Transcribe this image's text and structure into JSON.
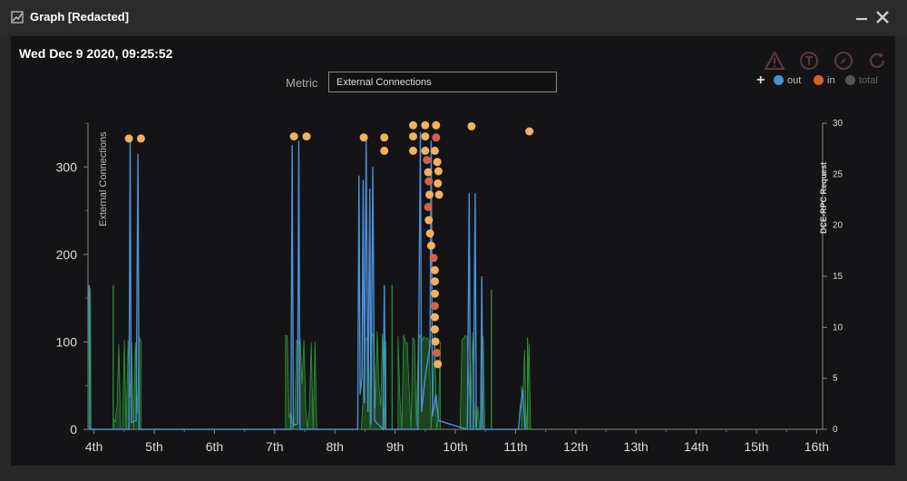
{
  "window": {
    "title": "Graph [Redacted]",
    "minimize_icon": "minimize-icon",
    "close_icon": "close-icon"
  },
  "panel": {
    "timestamp": "Wed Dec 9 2020, 09:25:52",
    "metric_label": "Metric",
    "metric_value": "External Connections"
  },
  "toolbar": {
    "icons": [
      "warning-icon",
      "sensor-icon",
      "compass-icon",
      "refresh-icon"
    ]
  },
  "legend": {
    "add_label": "+",
    "items": [
      {
        "label": "out",
        "color": "#4d8fd6"
      },
      {
        "label": "in",
        "color": "#d4602a"
      },
      {
        "label": "total",
        "color": "#555555"
      }
    ]
  },
  "chart_data": {
    "type": "line",
    "ylabel": "External Connections",
    "ylabel_right": "DCE-RPC Request",
    "yticks": [
      "0",
      "100",
      "200",
      "300"
    ],
    "yticks_right": [
      "0",
      "5",
      "10",
      "15",
      "20",
      "25",
      "30"
    ],
    "ylim": [
      0,
      350
    ],
    "ylim_right": [
      0,
      30
    ],
    "xticks": [
      "4th",
      "5th",
      "6th",
      "7th",
      "8th",
      "9th",
      "10th",
      "11th",
      "12th",
      "13th",
      "14th",
      "15th",
      "16th"
    ],
    "xlim": [
      3.9,
      16.1
    ],
    "colors": {
      "out": "#4d8fd6",
      "in": "#2e9a3a",
      "scatter": "#f4b060",
      "scatter_alt": "#d4624a"
    },
    "series": [
      {
        "name": "out",
        "points": [
          [
            3.92,
            165
          ],
          [
            3.93,
            0
          ],
          [
            4.58,
            0
          ],
          [
            4.6,
            330
          ],
          [
            4.62,
            8
          ],
          [
            4.7,
            10
          ],
          [
            4.73,
            315
          ],
          [
            4.75,
            0
          ],
          [
            7.27,
            0
          ],
          [
            7.29,
            325
          ],
          [
            7.31,
            5
          ],
          [
            7.38,
            6
          ],
          [
            7.4,
            330
          ],
          [
            7.42,
            0
          ],
          [
            8.38,
            0
          ],
          [
            8.4,
            290
          ],
          [
            8.42,
            40
          ],
          [
            8.45,
            60
          ],
          [
            8.47,
            285
          ],
          [
            8.49,
            30
          ],
          [
            8.52,
            330
          ],
          [
            8.55,
            20
          ],
          [
            8.58,
            275
          ],
          [
            8.6,
            5
          ],
          [
            8.63,
            300
          ],
          [
            8.66,
            10
          ],
          [
            8.8,
            0
          ],
          [
            8.82,
            165
          ],
          [
            8.84,
            0
          ],
          [
            9.38,
            0
          ],
          [
            9.42,
            340
          ],
          [
            9.44,
            20
          ],
          [
            9.5,
            60
          ],
          [
            9.58,
            95
          ],
          [
            9.6,
            330
          ],
          [
            9.62,
            15
          ],
          [
            9.68,
            40
          ],
          [
            9.72,
            10
          ],
          [
            10.2,
            0
          ],
          [
            10.23,
            270
          ],
          [
            10.25,
            0
          ],
          [
            10.3,
            0
          ],
          [
            10.33,
            270
          ],
          [
            10.35,
            0
          ],
          [
            10.42,
            0
          ],
          [
            10.44,
            175
          ],
          [
            10.46,
            0
          ],
          [
            11.05,
            0
          ],
          [
            11.08,
            25
          ],
          [
            11.12,
            45
          ],
          [
            11.16,
            0
          ]
        ]
      },
      {
        "name": "in",
        "bands": [
          [
            3.9,
            3.95,
            165
          ],
          [
            4.32,
            4.78,
            108
          ],
          [
            7.18,
            7.7,
            108
          ],
          [
            8.32,
            8.85,
            112
          ],
          [
            9.05,
            9.75,
            110
          ],
          [
            10.08,
            10.55,
            112
          ],
          [
            11.1,
            11.25,
            100
          ]
        ]
      }
    ],
    "scatter": [
      [
        4.58,
        28.5
      ],
      [
        4.78,
        28.5
      ],
      [
        7.32,
        28.7
      ],
      [
        7.53,
        28.7
      ],
      [
        8.48,
        28.6
      ],
      [
        8.82,
        28.6
      ],
      [
        8.82,
        27.3
      ],
      [
        9.3,
        29.8
      ],
      [
        9.5,
        29.8
      ],
      [
        9.68,
        29.8
      ],
      [
        10.27,
        29.7
      ],
      [
        11.23,
        29.2
      ],
      [
        9.3,
        28.7
      ],
      [
        9.5,
        28.7
      ],
      [
        9.68,
        28.6
      ],
      [
        9.3,
        27.3
      ],
      [
        9.5,
        27.3
      ],
      [
        9.66,
        27.3
      ],
      [
        9.53,
        26.4
      ],
      [
        9.7,
        26.2
      ],
      [
        9.55,
        25.2
      ],
      [
        9.72,
        25.3
      ],
      [
        9.56,
        24.3
      ],
      [
        9.71,
        24.1
      ],
      [
        9.57,
        23.0
      ],
      [
        9.73,
        23.0
      ],
      [
        9.55,
        21.8
      ],
      [
        9.56,
        20.5
      ],
      [
        9.58,
        19.2
      ],
      [
        9.6,
        18.0
      ],
      [
        9.64,
        16.8
      ],
      [
        9.66,
        15.6
      ],
      [
        9.66,
        14.5
      ],
      [
        9.66,
        13.3
      ],
      [
        9.66,
        12.1
      ],
      [
        9.66,
        11.0
      ],
      [
        9.66,
        9.8
      ],
      [
        9.67,
        8.6
      ],
      [
        9.69,
        7.5
      ],
      [
        9.71,
        6.4
      ]
    ]
  }
}
